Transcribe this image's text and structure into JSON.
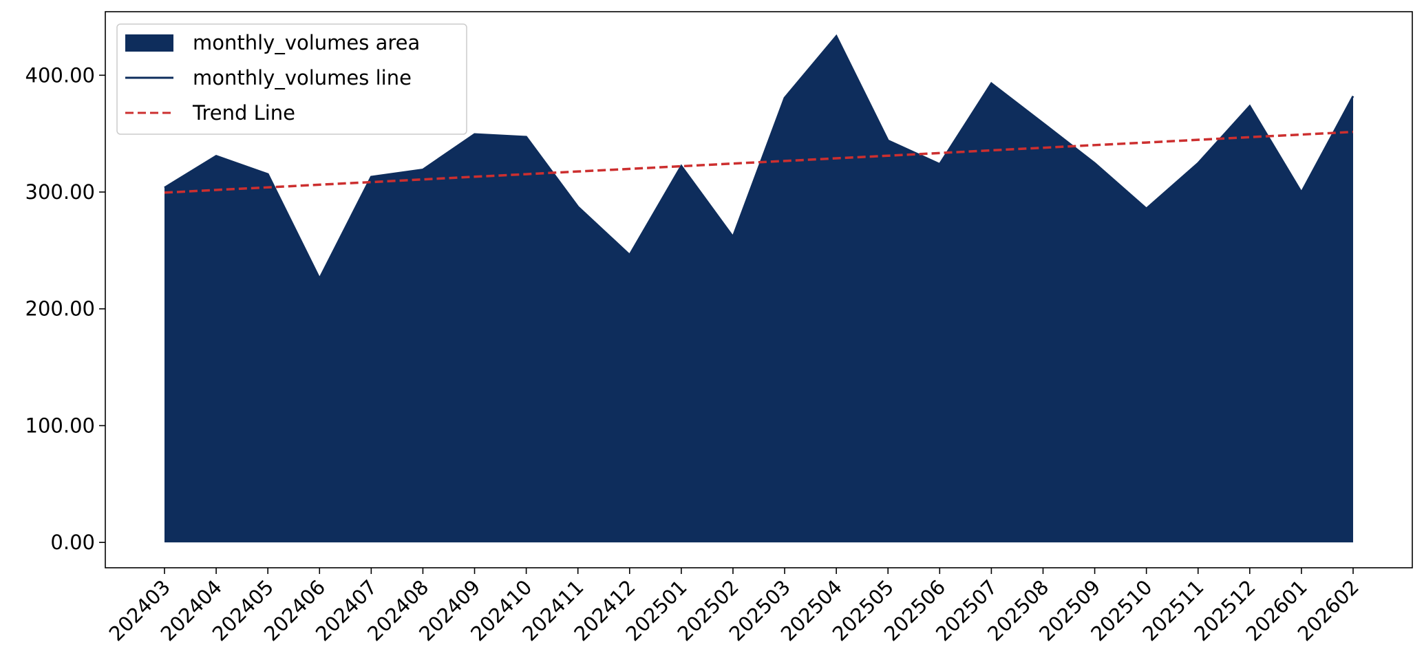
{
  "chart_data": {
    "type": "area",
    "categories": [
      "202403",
      "202404",
      "202405",
      "202406",
      "202407",
      "202408",
      "202409",
      "202410",
      "202411",
      "202412",
      "202501",
      "202502",
      "202503",
      "202504",
      "202505",
      "202506",
      "202507",
      "202508",
      "202509",
      "202510",
      "202511",
      "202512",
      "202601",
      "202602"
    ],
    "series": [
      {
        "name": "monthly_volumes area",
        "color": "#0e2d5c",
        "kind": "area",
        "values": [
          303.7,
          330.9,
          315.3,
          226,
          313,
          319.2,
          349.5,
          347.2,
          287.4,
          246.2,
          322.3,
          261.7,
          380.6,
          433.4,
          344.1,
          323.9,
          393,
          359,
          324.7,
          285.8,
          324.7,
          373.6,
          299.8,
          382.1
        ]
      },
      {
        "name": "monthly_volumes line",
        "color": "#0e2d5c",
        "kind": "line",
        "values": [
          303.7,
          330.9,
          315.3,
          226,
          313,
          319.2,
          349.5,
          347.2,
          287.4,
          246.2,
          322.3,
          261.7,
          380.6,
          433.4,
          344.1,
          323.9,
          393,
          359,
          324.7,
          285.8,
          324.7,
          373.6,
          299.8,
          382.1
        ]
      },
      {
        "name": "Trend Line",
        "color": "#cc2f2f",
        "kind": "dashed",
        "values": [
          299.5,
          301.8,
          304.0,
          306.3,
          308.5,
          310.8,
          313.1,
          315.3,
          317.6,
          319.8,
          322.1,
          324.4,
          326.6,
          328.9,
          331.1,
          333.4,
          335.7,
          337.9,
          340.2,
          342.4,
          344.7,
          347.0,
          349.2,
          351.5
        ]
      }
    ],
    "ylim": [
      -21.7,
      454.4
    ],
    "yticks": [
      {
        "value": 0,
        "label": "0.00"
      },
      {
        "value": 100,
        "label": "100.00"
      },
      {
        "value": 200,
        "label": "200.00"
      },
      {
        "value": 300,
        "label": "300.00"
      },
      {
        "value": 400,
        "label": "400.00"
      }
    ],
    "legend": "upper left"
  }
}
